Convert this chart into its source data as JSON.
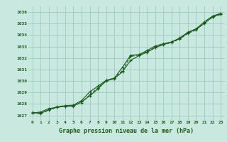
{
  "title": "Graphe pression niveau de la mer (hPa)",
  "bg_color": "#c8e8e0",
  "grid_color": "#a0c8c0",
  "line_color": "#1a5c1a",
  "x_ticks": [
    0,
    1,
    2,
    3,
    4,
    5,
    6,
    7,
    8,
    9,
    10,
    11,
    12,
    13,
    14,
    15,
    16,
    17,
    18,
    19,
    20,
    21,
    22,
    23
  ],
  "y_ticks": [
    1027,
    1028,
    1029,
    1030,
    1031,
    1032,
    1033,
    1034,
    1035,
    1036
  ],
  "ylim": [
    1026.6,
    1036.5
  ],
  "xlim": [
    -0.5,
    23.5
  ],
  "line1_x": [
    0,
    1,
    2,
    3,
    4,
    5,
    6,
    7,
    8,
    9,
    10,
    11,
    12,
    13,
    14,
    15,
    16,
    17,
    18,
    19,
    20,
    21,
    22,
    23
  ],
  "line1_y": [
    1027.2,
    1027.3,
    1027.6,
    1027.7,
    1027.8,
    1027.8,
    1028.2,
    1028.7,
    1029.3,
    1030.0,
    1030.2,
    1030.8,
    1031.8,
    1032.2,
    1032.5,
    1032.9,
    1033.2,
    1033.4,
    1033.7,
    1034.2,
    1034.5,
    1035.0,
    1035.6,
    1035.85
  ],
  "line2_x": [
    0,
    1,
    2,
    3,
    4,
    5,
    6,
    7,
    8,
    9,
    10,
    11,
    12,
    13,
    14,
    15,
    16,
    17,
    18,
    19,
    20,
    21,
    22,
    23
  ],
  "line2_y": [
    1027.25,
    1027.2,
    1027.5,
    1027.75,
    1027.85,
    1027.9,
    1028.3,
    1029.05,
    1029.55,
    1030.05,
    1030.25,
    1031.2,
    1032.25,
    1032.3,
    1032.65,
    1033.05,
    1033.25,
    1033.4,
    1033.75,
    1034.25,
    1034.55,
    1035.15,
    1035.65,
    1035.9
  ],
  "line3_x": [
    0,
    1,
    2,
    3,
    4,
    5,
    6,
    7,
    8,
    9,
    10,
    11,
    12,
    13,
    14,
    15,
    16,
    17,
    18,
    19,
    20,
    21,
    22,
    23
  ],
  "line3_y": [
    1027.2,
    1027.15,
    1027.45,
    1027.7,
    1027.8,
    1027.85,
    1028.1,
    1028.8,
    1029.4,
    1030.05,
    1030.25,
    1030.9,
    1032.15,
    1032.25,
    1032.55,
    1032.95,
    1033.15,
    1033.35,
    1033.65,
    1034.15,
    1034.45,
    1035.05,
    1035.55,
    1035.8
  ]
}
